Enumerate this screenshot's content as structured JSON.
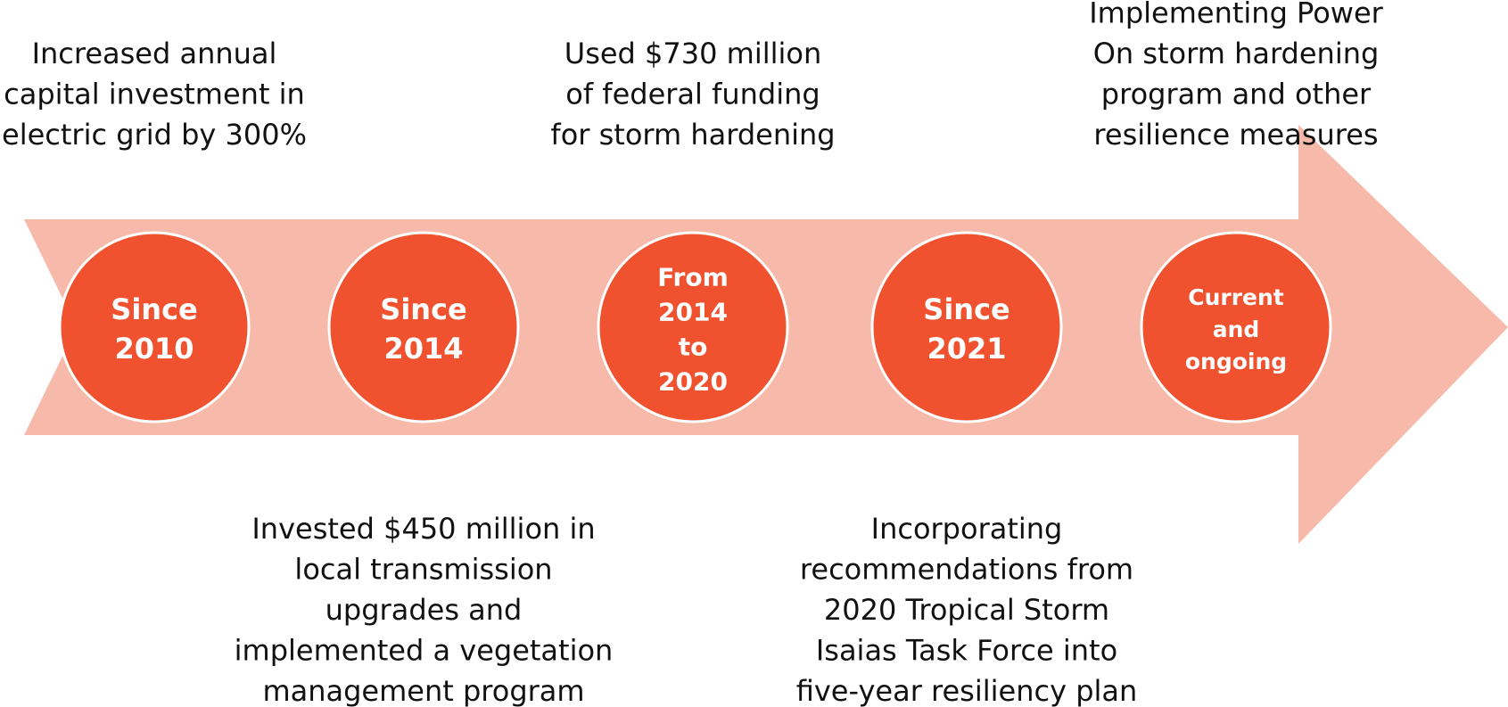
{
  "milestones": [
    {
      "period": [
        "Since",
        "2010"
      ],
      "description": [
        "Increased annual",
        "capital investment in",
        "electric grid by 300%"
      ]
    },
    {
      "period": [
        "Since",
        "2014"
      ],
      "description": [
        "Invested $450 million in",
        "local transmission",
        "upgrades and",
        "implemented a vegetation",
        "management program"
      ]
    },
    {
      "period": [
        "From",
        "2014",
        "to",
        "2020"
      ],
      "description": [
        "Used $730 million",
        "of federal funding",
        "for storm hardening"
      ]
    },
    {
      "period": [
        "Since",
        "2021"
      ],
      "description": [
        "Incorporating",
        "recommendations from",
        "2020 Tropical Storm",
        "Isaias Task Force into",
        "five-year resiliency plan"
      ]
    },
    {
      "period": [
        "Current",
        "and",
        "ongoing"
      ],
      "description": [
        "Implementing Power",
        "On storm hardening",
        "program and other",
        "resilience measures"
      ]
    }
  ]
}
